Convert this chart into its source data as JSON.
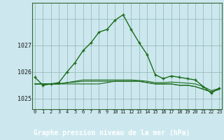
{
  "title": "Graphe pression niveau de la mer (hPa)",
  "background_color": "#cce8ee",
  "grid_color": "#99bbbb",
  "line_color": "#1a6b1a",
  "label_bg_color": "#336633",
  "label_text_color": "#ffffff",
  "hours": [
    0,
    1,
    2,
    3,
    4,
    5,
    6,
    7,
    8,
    9,
    10,
    11,
    12,
    13,
    14,
    15,
    16,
    17,
    18,
    19,
    20,
    21,
    22,
    23
  ],
  "pressure_main": [
    1025.8,
    1025.5,
    1025.55,
    1025.6,
    1026.0,
    1026.35,
    1026.8,
    1027.1,
    1027.5,
    1027.6,
    1027.95,
    1028.15,
    1027.6,
    1027.1,
    1026.65,
    1025.9,
    1025.75,
    1025.85,
    1025.8,
    1025.75,
    1025.7,
    1025.45,
    1025.2,
    1025.4
  ],
  "pressure_flat1": [
    1025.55,
    1025.55,
    1025.55,
    1025.55,
    1025.55,
    1025.55,
    1025.55,
    1025.55,
    1025.55,
    1025.6,
    1025.65,
    1025.65,
    1025.65,
    1025.65,
    1025.6,
    1025.55,
    1025.55,
    1025.55,
    1025.5,
    1025.5,
    1025.45,
    1025.35,
    1025.25,
    1025.35
  ],
  "pressure_flat2": [
    1025.55,
    1025.55,
    1025.55,
    1025.55,
    1025.6,
    1025.62,
    1025.65,
    1025.65,
    1025.65,
    1025.65,
    1025.65,
    1025.65,
    1025.65,
    1025.65,
    1025.6,
    1025.55,
    1025.55,
    1025.55,
    1025.5,
    1025.5,
    1025.45,
    1025.35,
    1025.25,
    1025.35
  ],
  "pressure_flat3": [
    1025.55,
    1025.55,
    1025.55,
    1025.55,
    1025.6,
    1025.65,
    1025.7,
    1025.7,
    1025.7,
    1025.7,
    1025.7,
    1025.7,
    1025.7,
    1025.68,
    1025.65,
    1025.6,
    1025.6,
    1025.62,
    1025.6,
    1025.58,
    1025.55,
    1025.45,
    1025.3,
    1025.38
  ],
  "yticks": [
    1025,
    1026,
    1027
  ],
  "ylim": [
    1024.6,
    1028.6
  ],
  "xlim": [
    -0.3,
    23.3
  ]
}
